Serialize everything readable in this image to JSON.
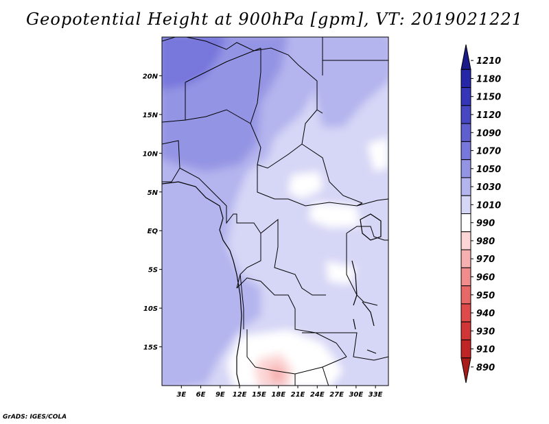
{
  "title": "Geopotential Height at 900hPa [gpm], VT: 2019021221",
  "credit": "GrADS: IGES/COLA",
  "map": {
    "lat_labels": [
      "20N",
      "15N",
      "10N",
      "5N",
      "EQ",
      "5S",
      "10S",
      "15S"
    ],
    "lon_labels": [
      "3E",
      "6E",
      "9E",
      "12E",
      "15E",
      "18E",
      "21E",
      "24E",
      "27E",
      "30E",
      "33E"
    ],
    "lat_range": [
      -20,
      25
    ],
    "lon_range": [
      0,
      35
    ]
  },
  "colorbar": {
    "levels": [
      "1210",
      "1180",
      "1150",
      "1120",
      "1090",
      "1070",
      "1050",
      "1030",
      "1010",
      "990",
      "980",
      "970",
      "960",
      "950",
      "940",
      "930",
      "910",
      "890"
    ],
    "colors": [
      "#1a1a8a",
      "#2626a8",
      "#3535b8",
      "#4747c4",
      "#5f5fd0",
      "#7777dc",
      "#9494e4",
      "#b4b4ee",
      "#d6d6f6",
      "#ffffff",
      "#fcd6d6",
      "#f7b0b0",
      "#f08c8c",
      "#e86868",
      "#df4a4a",
      "#d13535",
      "#bf2525",
      "#a81c1c"
    ]
  }
}
